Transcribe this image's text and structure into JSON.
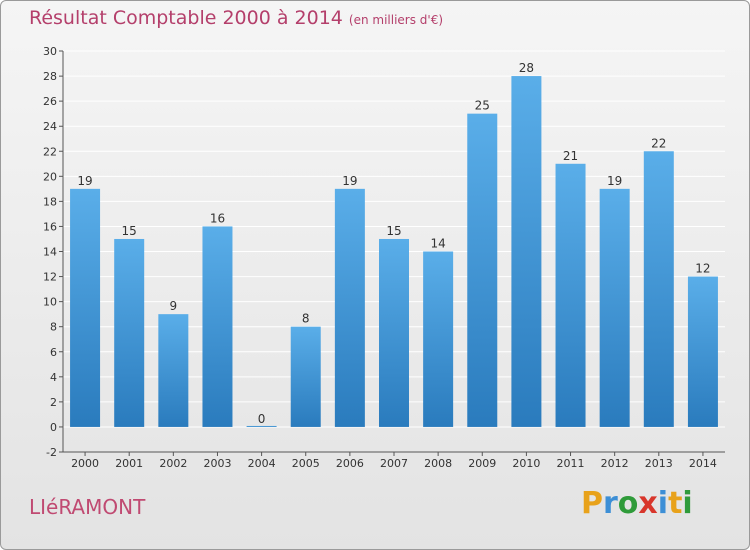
{
  "title": "Résultat Comptable 2000 à 2014",
  "subtitle": "(en milliers d'€)",
  "place": "LIéRAMONT",
  "logo": "Proxiti",
  "colors": {
    "title": "#b43f6b",
    "bar_top": "#5aaee9",
    "bar_bottom": "#2a7bbd",
    "grid": "#ffffff",
    "background_top": "#f5f5f5",
    "background_bottom": "#e3e3e3"
  },
  "chart_data": {
    "type": "bar",
    "title": "Résultat Comptable 2000 à 2014",
    "xlabel": "",
    "ylabel": "",
    "categories": [
      "2000",
      "2001",
      "2002",
      "2003",
      "2004",
      "2005",
      "2006",
      "2007",
      "2008",
      "2009",
      "2010",
      "2011",
      "2012",
      "2013",
      "2014"
    ],
    "values": [
      19,
      15,
      9,
      16,
      0,
      8,
      19,
      15,
      14,
      25,
      28,
      21,
      19,
      22,
      12
    ],
    "ylim": [
      -2,
      30
    ],
    "yticks": [
      -2,
      0,
      2,
      4,
      6,
      8,
      10,
      12,
      14,
      16,
      18,
      20,
      22,
      24,
      26,
      28,
      30
    ],
    "grid": true,
    "data_labels": true
  }
}
